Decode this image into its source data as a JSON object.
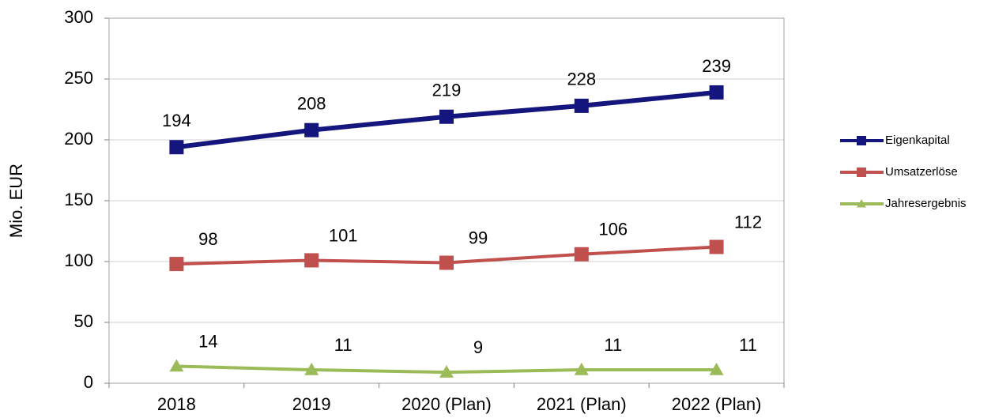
{
  "chart_data": {
    "type": "line",
    "y_label": "Mio. EUR",
    "categories": [
      "2018",
      "2019",
      "2020 (Plan)",
      "2021 (Plan)",
      "2022 (Plan)"
    ],
    "series": [
      {
        "name": "Eigenkapital",
        "color": "#15157e",
        "marker": "square",
        "values": [
          194,
          208,
          219,
          228,
          239
        ]
      },
      {
        "name": "Umsatzerlöse",
        "color": "#c0504d",
        "marker": "square",
        "values": [
          98,
          101,
          99,
          106,
          112
        ]
      },
      {
        "name": "Jahresergebnis",
        "color": "#9bbb59",
        "marker": "triangle",
        "values": [
          14,
          11,
          9,
          11,
          11
        ]
      }
    ],
    "ylim": [
      0,
      300
    ],
    "yticks": [
      0,
      50,
      100,
      150,
      200,
      250,
      300
    ],
    "grid": true,
    "legend": "right"
  }
}
